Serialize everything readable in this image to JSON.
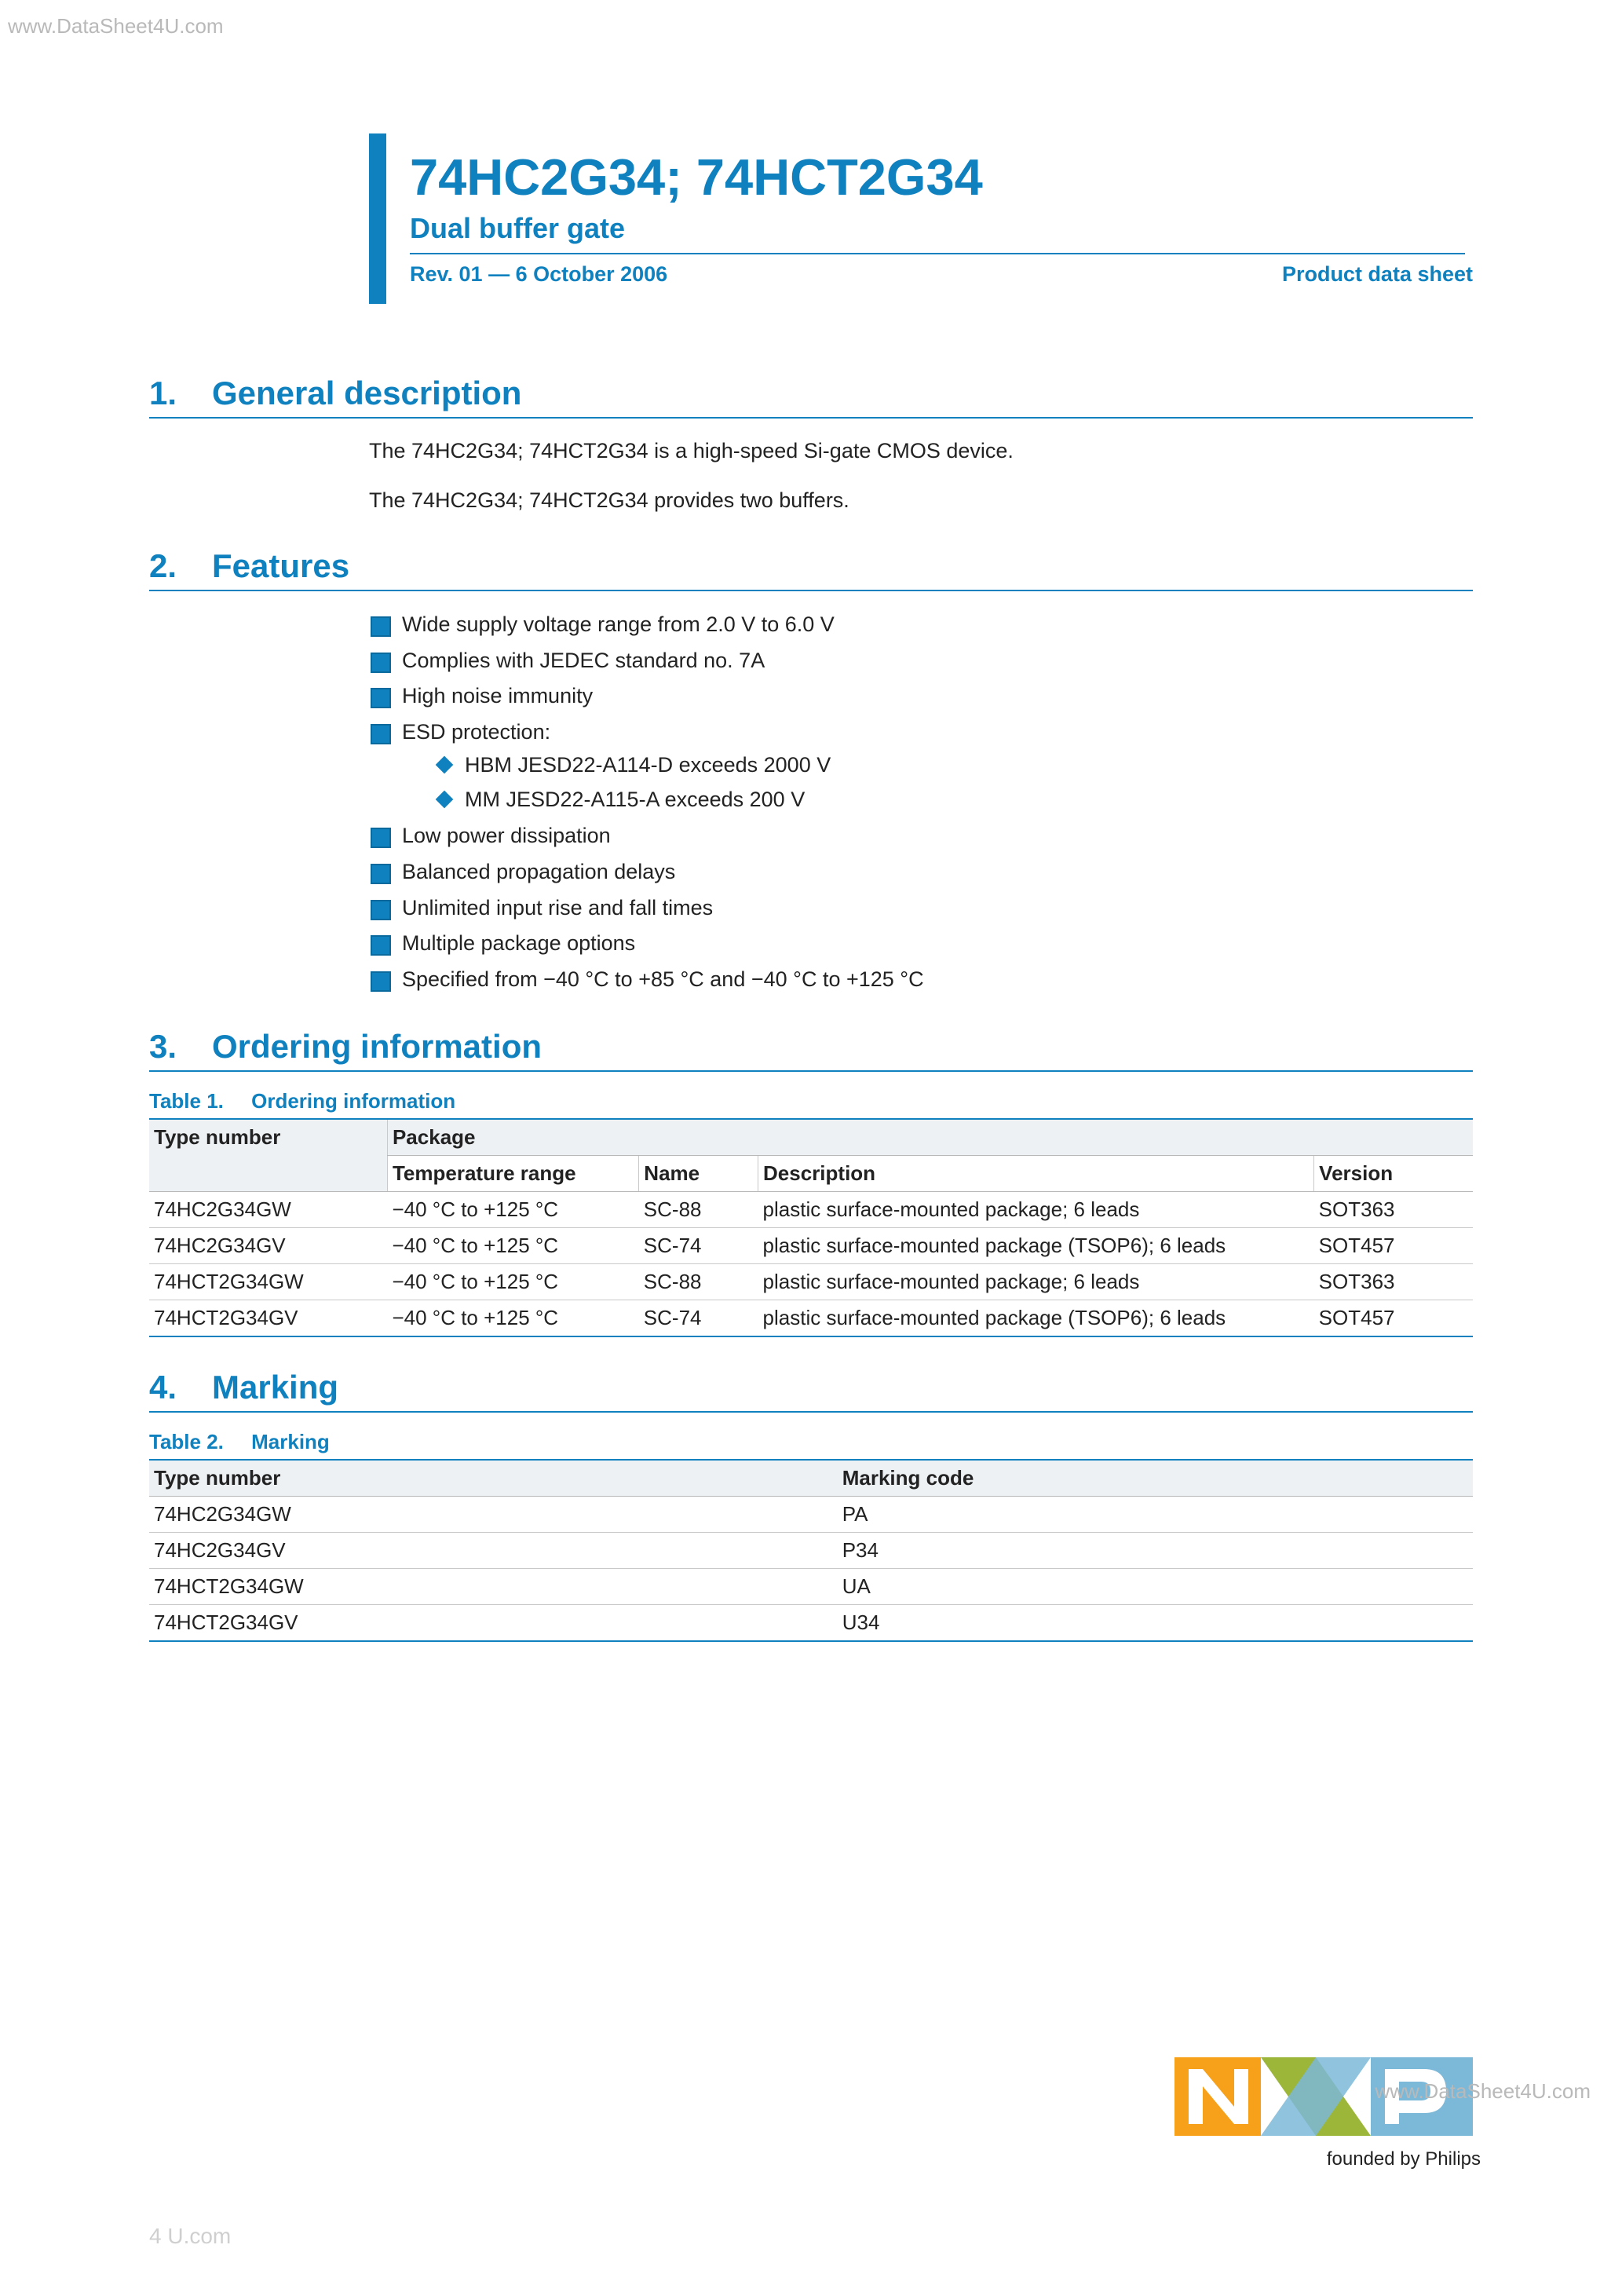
{
  "watermarks": {
    "top_left": "www.DataSheet4U.com",
    "bottom_right": "www.DataSheet4U.com",
    "bottom_left": "4 U.com"
  },
  "title": {
    "main": "74HC2G34; 74HCT2G34",
    "sub": "Dual buffer gate",
    "rev": "Rev. 01 — 6 October 2006",
    "doc_type": "Product data sheet"
  },
  "colors": {
    "brand": "#1081bf",
    "text": "#222222",
    "rule": "#1081bf",
    "table_header_bg": "#edf1f4",
    "table_border": "#c9c9c9",
    "watermark": "#b9b9b9"
  },
  "sections": {
    "s1": {
      "num": "1.",
      "title": "General description"
    },
    "s2": {
      "num": "2.",
      "title": "Features"
    },
    "s3": {
      "num": "3.",
      "title": "Ordering information"
    },
    "s4": {
      "num": "4.",
      "title": "Marking"
    }
  },
  "general": {
    "p1": "The 74HC2G34; 74HCT2G34 is a high-speed Si-gate CMOS device.",
    "p2": "The 74HC2G34; 74HCT2G34 provides two buffers."
  },
  "features": [
    {
      "text": "Wide supply voltage range from 2.0 V to 6.0 V"
    },
    {
      "text": "Complies with JEDEC standard no. 7A"
    },
    {
      "text": "High noise immunity"
    },
    {
      "text": "ESD protection:",
      "sub": [
        "HBM JESD22-A114-D exceeds 2000 V",
        "MM JESD22-A115-A exceeds 200 V"
      ]
    },
    {
      "text": "Low power dissipation"
    },
    {
      "text": "Balanced propagation delays"
    },
    {
      "text": "Unlimited input rise and fall times"
    },
    {
      "text": "Multiple package options"
    },
    {
      "text": "Specified from −40 °C to +85 °C and −40 °C to +125 °C"
    }
  ],
  "table1": {
    "caption_label": "Table 1.",
    "caption_title": "Ordering information",
    "columns": {
      "c1": "Type number",
      "group": "Package",
      "c2": "Temperature range",
      "c3": "Name",
      "c4": "Description",
      "c5": "Version"
    },
    "col_widths": [
      "18%",
      "19%",
      "9%",
      "42%",
      "12%"
    ],
    "rows": [
      [
        "74HC2G34GW",
        "−40 °C to +125 °C",
        "SC-88",
        "plastic surface-mounted package; 6 leads",
        "SOT363"
      ],
      [
        "74HC2G34GV",
        "−40 °C to +125 °C",
        "SC-74",
        "plastic surface-mounted package (TSOP6); 6 leads",
        "SOT457"
      ],
      [
        "74HCT2G34GW",
        "−40 °C to +125 °C",
        "SC-88",
        "plastic surface-mounted package; 6 leads",
        "SOT363"
      ],
      [
        "74HCT2G34GV",
        "−40 °C to +125 °C",
        "SC-74",
        "plastic surface-mounted package (TSOP6); 6 leads",
        "SOT457"
      ]
    ]
  },
  "table2": {
    "caption_label": "Table 2.",
    "caption_title": "Marking",
    "columns": {
      "c1": "Type number",
      "c2": "Marking code"
    },
    "col_widths": [
      "52%",
      "48%"
    ],
    "rows": [
      [
        "74HC2G34GW",
        "PA"
      ],
      [
        "74HC2G34GV",
        "P34"
      ],
      [
        "74HCT2G34GW",
        "UA"
      ],
      [
        "74HCT2G34GV",
        "U34"
      ]
    ]
  },
  "logo": {
    "tagline": "founded by Philips",
    "colors": {
      "orange": "#f7a11a",
      "blue": "#7cb8d8",
      "green": "#9cb63a"
    }
  }
}
